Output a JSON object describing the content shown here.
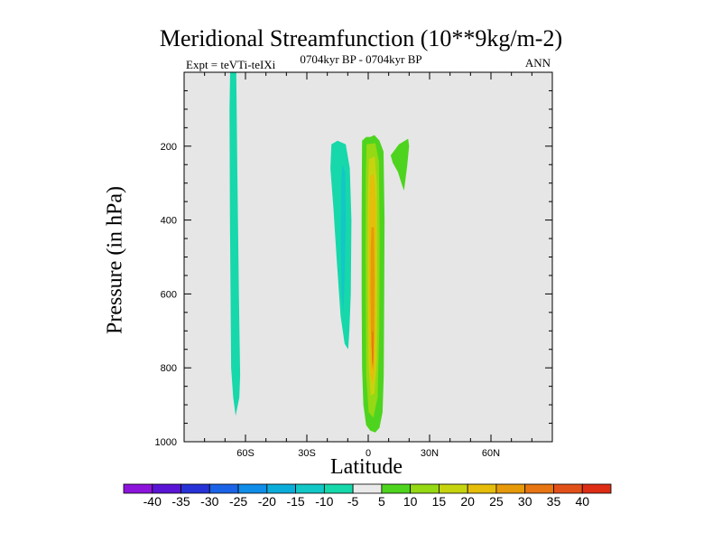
{
  "chart_data": {
    "type": "contour",
    "title": "Meridional Streamfunction (10**9kg/m-2)",
    "subtitle_center": "0704kyr BP - 0704kyr BP",
    "subtitle_left": "Expt = teVTi-teIXi",
    "subtitle_right": "ANN",
    "xlabel": "Latitude",
    "ylabel": "Pressure (in hPa)",
    "x_ticks": [
      "60S",
      "30S",
      "0",
      "30N",
      "60N"
    ],
    "x_tick_values": [
      -60,
      -30,
      0,
      30,
      60
    ],
    "xlim": [
      -90,
      90
    ],
    "y_ticks": [
      "200",
      "400",
      "600",
      "800",
      "1000"
    ],
    "y_tick_values": [
      200,
      400,
      600,
      800,
      1000
    ],
    "ylim": [
      0,
      1000
    ],
    "y_inverted": true,
    "background_color": "#e6e6e6",
    "colorbar": {
      "labels": [
        "-40",
        "-35",
        "-30",
        "-25",
        "-20",
        "-15",
        "-10",
        "-5",
        "5",
        "10",
        "15",
        "20",
        "25",
        "30",
        "35",
        "40"
      ],
      "colors": [
        "#8d14db",
        "#5a14d4",
        "#2732d6",
        "#1b63e6",
        "#0f8de8",
        "#0bacd9",
        "#12c7c6",
        "#16d8ab",
        "#eaeaea",
        "#4ed41e",
        "#95d814",
        "#c6d40f",
        "#e5bd0a",
        "#e69a0a",
        "#e67512",
        "#e2501a",
        "#dd2d14"
      ]
    },
    "features": [
      {
        "name": "negative cell near 65S",
        "range": "-10 to -5",
        "color": "#16d8ab",
        "x_range": [
          -68,
          -62
        ],
        "p_range": [
          0,
          930
        ]
      },
      {
        "name": "negative cell near 15S",
        "range": "-10 to -5",
        "color": "#16d8ab",
        "x_range": [
          -19,
          -8
        ],
        "p_range": [
          185,
          750
        ]
      },
      {
        "name": "negative core near 12S",
        "range": "-15 to -10",
        "color": "#12c7c6",
        "x_range": [
          -13,
          -11
        ],
        "p_range": [
          250,
          660
        ]
      },
      {
        "name": "positive cell at equator",
        "range": "5 to 30",
        "color": "#4ed41e",
        "x_range": [
          -3,
          8
        ],
        "p_range": [
          165,
          975
        ],
        "max": 30
      },
      {
        "name": "positive cell near 17N",
        "range": "5 to 10",
        "color": "#4ed41e",
        "x_range": [
          11,
          20
        ],
        "p_range": [
          180,
          320
        ]
      }
    ]
  }
}
